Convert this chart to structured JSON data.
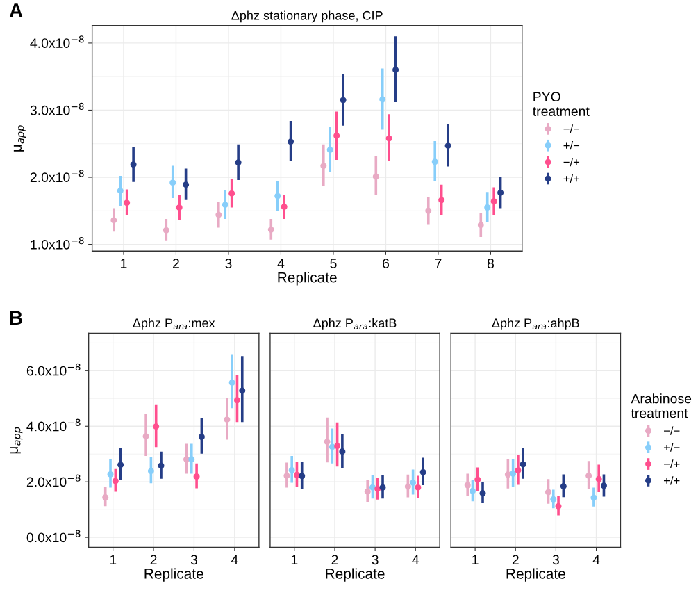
{
  "chart_data": [
    {
      "type": "scatter",
      "title": "Δphz stationary phase, CIP",
      "xlabel": "Replicate",
      "ylabel": "μ$_{app}$",
      "legend_title": "PYO\ntreatment",
      "annotations": [
        "A"
      ],
      "legend": "right",
      "grid": true,
      "marker": "circle",
      "categories": [
        "1",
        "2",
        "3",
        "4",
        "5",
        "6",
        "7",
        "8"
      ],
      "ylim": [
        9e-09,
        4.26e-08
      ],
      "yticks": [
        {
          "value": 1e-08,
          "label": "1.0x10$^{−8}$"
        },
        {
          "value": 2e-08,
          "label": "2.0x10$^{−8}$"
        },
        {
          "value": 3e-08,
          "label": "3.0x10$^{−8}$"
        },
        {
          "value": 4e-08,
          "label": "4.0x10$^{−8}$"
        }
      ],
      "series": [
        {
          "name": "−/−",
          "color": "#e8aac4",
          "values": [
            1.36e-08,
            1.21e-08,
            1.44e-08,
            1.22e-08,
            2.17e-08,
            2.01e-08,
            1.5e-08,
            1.29e-08
          ],
          "errors": [
            [
              1.19e-08,
              1.54e-08
            ],
            [
              1.06e-08,
              1.38e-08
            ],
            [
              1.25e-08,
              1.63e-08
            ],
            [
              1.07e-08,
              1.38e-08
            ],
            [
              1.87e-08,
              2.49e-08
            ],
            [
              1.73e-08,
              2.31e-08
            ],
            [
              1.3e-08,
              1.71e-08
            ],
            [
              1.11e-08,
              1.47e-08
            ]
          ]
        },
        {
          "name": "+/−",
          "color": "#87cefa",
          "values": [
            1.8e-08,
            1.92e-08,
            1.59e-08,
            1.72e-08,
            2.41e-08,
            3.16e-08,
            2.23e-08,
            1.55e-08
          ],
          "errors": [
            [
              1.57e-08,
              2.02e-08
            ],
            [
              1.69e-08,
              2.17e-08
            ],
            [
              1.38e-08,
              1.81e-08
            ],
            [
              1.5e-08,
              1.94e-08
            ],
            [
              2.08e-08,
              2.75e-08
            ],
            [
              2.71e-08,
              3.62e-08
            ],
            [
              1.94e-08,
              2.54e-08
            ],
            [
              1.33e-08,
              1.78e-08
            ]
          ]
        },
        {
          "name": "−/+",
          "color": "#ff4f8e",
          "values": [
            1.62e-08,
            1.55e-08,
            1.76e-08,
            1.56e-08,
            2.62e-08,
            2.58e-08,
            1.66e-08,
            1.64e-08
          ],
          "errors": [
            [
              1.43e-08,
              1.82e-08
            ],
            [
              1.36e-08,
              1.74e-08
            ],
            [
              1.55e-08,
              1.97e-08
            ],
            [
              1.38e-08,
              1.74e-08
            ],
            [
              2.26e-08,
              2.98e-08
            ],
            [
              2.24e-08,
              2.94e-08
            ],
            [
              1.44e-08,
              1.89e-08
            ],
            [
              1.44e-08,
              1.85e-08
            ]
          ]
        },
        {
          "name": "+/+",
          "color": "#253d87",
          "values": [
            2.19e-08,
            1.89e-08,
            2.22e-08,
            2.53e-08,
            3.15e-08,
            3.6e-08,
            2.47e-08,
            1.77e-08
          ],
          "errors": [
            [
              1.93e-08,
              2.45e-08
            ],
            [
              1.66e-08,
              2.13e-08
            ],
            [
              1.96e-08,
              2.49e-08
            ],
            [
              2.25e-08,
              2.84e-08
            ],
            [
              2.77e-08,
              3.54e-08
            ],
            [
              3.12e-08,
              4.1e-08
            ],
            [
              2.16e-08,
              2.79e-08
            ],
            [
              1.54e-08,
              2e-08
            ]
          ]
        }
      ]
    },
    {
      "type": "scatter",
      "title": "Δphz P$_{ara}$:mex",
      "xlabel": "Replicate",
      "ylabel": "μ$_{app}$",
      "annotations": [
        "B"
      ],
      "grid": true,
      "marker": "circle",
      "categories": [
        "1",
        "2",
        "3",
        "4"
      ],
      "ylim": [
        -3.6e-09,
        7.35e-08
      ],
      "yticks": [
        {
          "value": 0.0,
          "label": "0.0x10$^{−8}$"
        },
        {
          "value": 2e-08,
          "label": "2.0x10$^{−8}$"
        },
        {
          "value": 4e-08,
          "label": "4.0x10$^{−8}$"
        },
        {
          "value": 6e-08,
          "label": "6.0x10$^{−8}$"
        }
      ],
      "series": [
        {
          "color": "#e8aac4",
          "values": [
            1.44e-08,
            3.64e-08,
            2.81e-08,
            4.24e-08
          ],
          "errors": [
            [
              1.12e-08,
              1.82e-08
            ],
            [
              2.93e-08,
              4.44e-08
            ],
            [
              2.29e-08,
              3.37e-08
            ],
            [
              3.52e-08,
              5.02e-08
            ]
          ]
        },
        {
          "color": "#87cefa",
          "values": [
            2.27e-08,
            2.39e-08,
            2.81e-08,
            5.57e-08
          ],
          "errors": [
            [
              1.79e-08,
              2.81e-08
            ],
            [
              1.95e-08,
              2.89e-08
            ],
            [
              2.29e-08,
              3.37e-08
            ],
            [
              4.65e-08,
              6.57e-08
            ]
          ]
        },
        {
          "color": "#ff4f8e",
          "values": [
            2.03e-08,
            3.99e-08,
            2.19e-08,
            4.94e-08
          ],
          "errors": [
            [
              1.64e-08,
              2.46e-08
            ],
            [
              3.25e-08,
              4.79e-08
            ],
            [
              1.77e-08,
              2.66e-08
            ],
            [
              4.15e-08,
              5.85e-08
            ]
          ]
        },
        {
          "color": "#253d87",
          "values": [
            2.61e-08,
            2.58e-08,
            3.62e-08,
            5.28e-08
          ],
          "errors": [
            [
              2.07e-08,
              3.22e-08
            ],
            [
              2.11e-08,
              3.09e-08
            ],
            [
              3.01e-08,
              4.28e-08
            ],
            [
              4.15e-08,
              6.53e-08
            ]
          ]
        }
      ]
    },
    {
      "type": "scatter",
      "title": "Δphz P$_{ara}$:katB",
      "xlabel": "Replicate",
      "grid": true,
      "marker": "circle",
      "tick_labels": "x",
      "categories": [
        "1",
        "2",
        "3",
        "4"
      ],
      "ylim": [
        -3.6e-09,
        7.35e-08
      ],
      "yticks": [
        {
          "value": 0.0,
          "label": null
        },
        {
          "value": 2e-08,
          "label": null
        },
        {
          "value": 4e-08,
          "label": null
        },
        {
          "value": 6e-08,
          "label": null
        }
      ],
      "series": [
        {
          "color": "#e8aac4",
          "values": [
            2.22e-08,
            3.44e-08,
            1.65e-08,
            1.83e-08
          ],
          "errors": [
            [
              1.79e-08,
              2.69e-08
            ],
            [
              2.7e-08,
              4.31e-08
            ],
            [
              1.28e-08,
              2.06e-08
            ],
            [
              1.44e-08,
              2.26e-08
            ]
          ]
        },
        {
          "color": "#87cefa",
          "values": [
            2.42e-08,
            3.26e-08,
            1.8e-08,
            1.97e-08
          ],
          "errors": [
            [
              1.97e-08,
              2.93e-08
            ],
            [
              2.66e-08,
              3.92e-08
            ],
            [
              1.4e-08,
              2.24e-08
            ],
            [
              1.54e-08,
              2.44e-08
            ]
          ]
        },
        {
          "color": "#ff4f8e",
          "values": [
            2.25e-08,
            3.29e-08,
            1.75e-08,
            1.8e-08
          ],
          "errors": [
            [
              1.82e-08,
              2.72e-08
            ],
            [
              2.55e-08,
              4.14e-08
            ],
            [
              1.36e-08,
              2.15e-08
            ],
            [
              1.41e-08,
              2.22e-08
            ]
          ]
        },
        {
          "color": "#253d87",
          "values": [
            2.21e-08,
            3.09e-08,
            1.8e-08,
            2.35e-08
          ],
          "errors": [
            [
              1.75e-08,
              2.72e-08
            ],
            [
              2.5e-08,
              3.72e-08
            ],
            [
              1.4e-08,
              2.24e-08
            ],
            [
              1.88e-08,
              2.87e-08
            ]
          ]
        }
      ]
    },
    {
      "type": "scatter",
      "title": "Δphz P$_{ara}$:ahpB",
      "xlabel": "Replicate",
      "legend_title": "Arabinose\ntreatment",
      "legend": "right",
      "grid": true,
      "marker": "circle",
      "tick_labels": "x",
      "categories": [
        "1",
        "2",
        "3",
        "4"
      ],
      "ylim": [
        -3.6e-09,
        7.35e-08
      ],
      "yticks": [
        {
          "value": 0.0,
          "label": null
        },
        {
          "value": 2e-08,
          "label": null
        },
        {
          "value": 4e-08,
          "label": null
        },
        {
          "value": 6e-08,
          "label": null
        }
      ],
      "series": [
        {
          "name": "−/−",
          "color": "#e8aac4",
          "values": [
            1.88e-08,
            2.26e-08,
            1.63e-08,
            2.22e-08
          ],
          "errors": [
            [
              1.5e-08,
              2.29e-08
            ],
            [
              1.76e-08,
              2.82e-08
            ],
            [
              1.21e-08,
              2.1e-08
            ],
            [
              1.75e-08,
              2.75e-08
            ]
          ]
        },
        {
          "name": "+/−",
          "color": "#87cefa",
          "values": [
            1.67e-08,
            2.3e-08,
            1.37e-08,
            1.43e-08
          ],
          "errors": [
            [
              1.3e-08,
              2.07e-08
            ],
            [
              1.82e-08,
              2.82e-08
            ],
            [
              1.05e-08,
              1.72e-08
            ],
            [
              1.11e-08,
              1.79e-08
            ]
          ]
        },
        {
          "name": "−/+",
          "color": "#ff4f8e",
          "values": [
            2.08e-08,
            2.41e-08,
            1.12e-08,
            2.1e-08
          ],
          "errors": [
            [
              1.67e-08,
              2.52e-08
            ],
            [
              1.89e-08,
              2.97e-08
            ],
            [
              7.9e-09,
              1.5e-08
            ],
            [
              1.63e-08,
              2.62e-08
            ]
          ]
        },
        {
          "name": "+/+",
          "color": "#253d87",
          "values": [
            1.59e-08,
            2.63e-08,
            1.84e-08,
            1.86e-08
          ],
          "errors": [
            [
              1.23e-08,
              1.98e-08
            ],
            [
              2.11e-08,
              3.21e-08
            ],
            [
              1.45e-08,
              2.27e-08
            ],
            [
              1.47e-08,
              2.27e-08
            ]
          ]
        }
      ]
    }
  ]
}
